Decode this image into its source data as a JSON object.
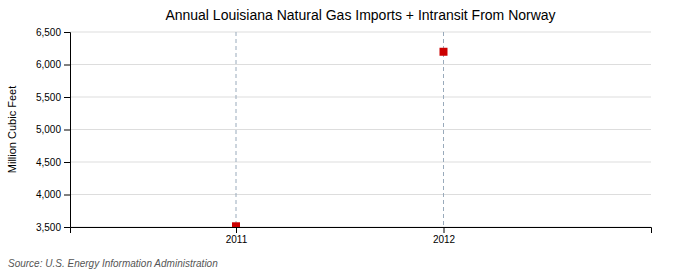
{
  "chart_data": {
    "type": "scatter",
    "title": "Annual Louisiana Natural Gas Imports + Intransit From Norway",
    "ylabel": "Million Cubic Feet",
    "annotations": [
      "Source: U.S. Energy Information Administration"
    ],
    "x": [
      2011,
      2012
    ],
    "values": [
      3511,
      6196
    ],
    "color": "#cc0000",
    "marker": "square",
    "xlim": [
      2010.2,
      2013.0
    ],
    "xticks": [
      2011,
      2012
    ],
    "ylim": [
      3500,
      6500
    ],
    "yticks": [
      {
        "value": 3500,
        "label": "3,500"
      },
      {
        "value": 4000,
        "label": "4,000"
      },
      {
        "value": 4500,
        "label": "4,500"
      },
      {
        "value": 5000,
        "label": "5,000"
      },
      {
        "value": 5500,
        "label": "5,500"
      },
      {
        "value": 6000,
        "label": "6,000"
      },
      {
        "value": 6500,
        "label": "6,500"
      }
    ],
    "grid": true
  }
}
